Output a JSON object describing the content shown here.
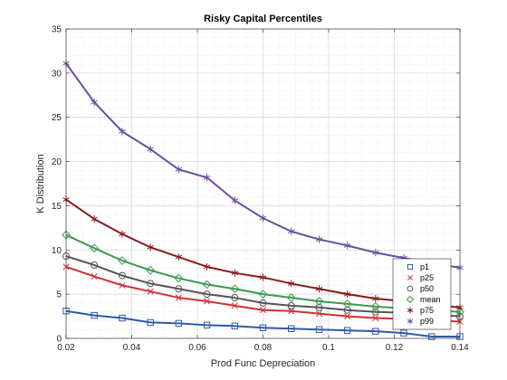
{
  "chart_data": {
    "type": "line",
    "title": "Risky Capital Percentiles",
    "xlabel": "Prod Func Depreciation",
    "ylabel": "K Distribution",
    "xlim": [
      0.02,
      0.14
    ],
    "ylim": [
      0,
      35
    ],
    "xticks": [
      0.02,
      0.04,
      0.06,
      0.08,
      0.1,
      0.12,
      0.14
    ],
    "xtick_labels": [
      "0.02",
      "0.04",
      "0.06",
      "0.08",
      "0.1",
      "0.12",
      "0.14"
    ],
    "yticks": [
      0,
      5,
      10,
      15,
      20,
      25,
      30,
      35
    ],
    "ytick_labels": [
      "0",
      "5",
      "10",
      "15",
      "20",
      "25",
      "30",
      "35"
    ],
    "grid": true,
    "legend_position": "bottom-right",
    "x": [
      0.02,
      0.0286,
      0.0371,
      0.0457,
      0.0543,
      0.0629,
      0.0714,
      0.08,
      0.0886,
      0.0971,
      0.1057,
      0.1143,
      0.1229,
      0.1314,
      0.14
    ],
    "series": [
      {
        "name": "p1",
        "color": "#2e5aa8",
        "marker": "square",
        "values": [
          3.1,
          2.6,
          2.3,
          1.8,
          1.7,
          1.5,
          1.4,
          1.2,
          1.1,
          1.0,
          0.9,
          0.8,
          0.6,
          0.2,
          0.2
        ]
      },
      {
        "name": "p25",
        "color": "#cc3333",
        "marker": "x",
        "values": [
          8.1,
          7.0,
          6.0,
          5.3,
          4.6,
          4.2,
          3.7,
          3.2,
          3.1,
          2.8,
          2.5,
          2.3,
          2.2,
          2.0,
          1.9
        ]
      },
      {
        "name": "p50",
        "color": "#555555",
        "marker": "circle",
        "values": [
          9.3,
          8.3,
          7.1,
          6.2,
          5.6,
          5.0,
          4.6,
          4.0,
          3.7,
          3.5,
          3.2,
          3.0,
          2.9,
          2.7,
          2.5
        ]
      },
      {
        "name": "mean",
        "color": "#3a9a4e",
        "marker": "diamond",
        "values": [
          11.7,
          10.2,
          8.8,
          7.7,
          6.8,
          6.1,
          5.6,
          5.0,
          4.6,
          4.2,
          3.9,
          3.6,
          3.4,
          3.2,
          3.0
        ]
      },
      {
        "name": "p75",
        "color": "#8b1a1a",
        "marker": "star",
        "values": [
          15.7,
          13.5,
          11.8,
          10.3,
          9.2,
          8.1,
          7.4,
          6.9,
          6.2,
          5.6,
          5.0,
          4.5,
          4.2,
          3.8,
          3.5
        ]
      },
      {
        "name": "p99",
        "color": "#6a4ea0",
        "marker": "asterisk",
        "values": [
          31.1,
          26.7,
          23.4,
          21.4,
          19.1,
          18.2,
          15.6,
          13.6,
          12.1,
          11.2,
          10.5,
          9.7,
          9.1,
          8.5,
          8.0
        ]
      }
    ]
  }
}
